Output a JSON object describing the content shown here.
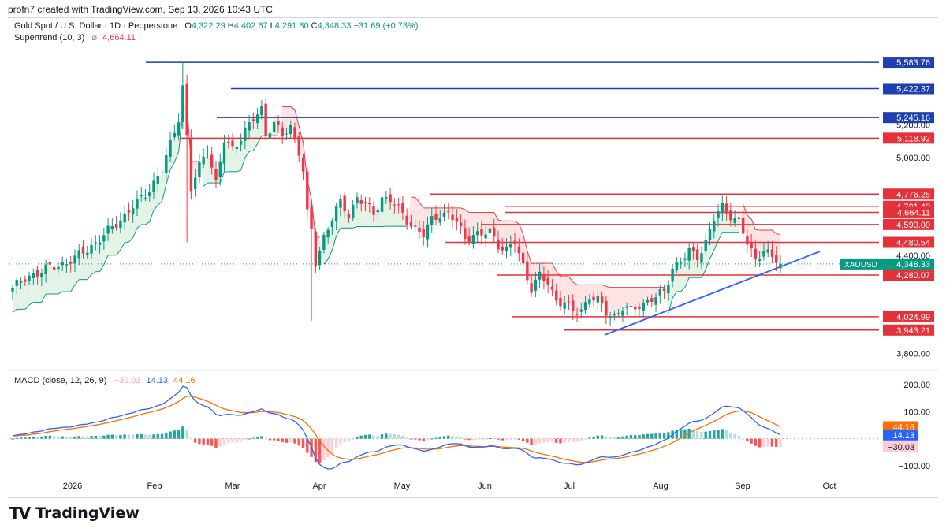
{
  "header": {
    "created_by": "profn7 created with TradingView.com, Sep 13, 2026 10:43 UTC"
  },
  "legend": {
    "symbol": "Gold Spot / U.S. Dollar · 1D · Pepperstone",
    "open_label": "O",
    "open": "4,322.29",
    "high_label": "H",
    "high": "4,402.67",
    "low_label": "L",
    "low": "4,291.80",
    "close_label": "C",
    "close": "4,348.33",
    "change": "+31.69 (+0.73%)",
    "supertrend_label": "Supertrend (10, 3)",
    "supertrend_icon": "eye-off-icon",
    "supertrend_value": "4,664.11",
    "macd_label": "MACD (close, 12, 26, 9)",
    "macd_hist": "−30.03",
    "macd_line": "14.13",
    "macd_signal": "44.16"
  },
  "logo": {
    "mark": "TV",
    "name": "TradingView"
  },
  "colors": {
    "up": "#089981",
    "down": "#f23645",
    "blue_level": "#1e3fb0",
    "red_level": "#e4313a",
    "trend": "#2962ff",
    "macd": "#2962ff",
    "signal": "#ff6d00",
    "st_down_fill": "#fde3e3",
    "st_up_fill": "#e3f3e6"
  },
  "chart_data": [
    {
      "type": "candlestick",
      "symbol": "XAUUSD",
      "ylim": [
        3720,
        5700
      ],
      "y_ticks": [
        "5,200.00",
        "5,000.00",
        "4,400.00",
        "3,800.00"
      ],
      "x_ticks": [
        "2026",
        "Feb",
        "Mar",
        "Apr",
        "May",
        "Jun",
        "Jul",
        "Aug",
        "Sep",
        "Oct"
      ],
      "horizontal_levels": [
        {
          "value": "5,583.76",
          "color": "blue"
        },
        {
          "value": "5,422.37",
          "color": "blue"
        },
        {
          "value": "5,245.16",
          "color": "blue"
        },
        {
          "value": "5,118.92",
          "color": "red"
        },
        {
          "value": "4,776.25",
          "color": "red"
        },
        {
          "value": "4,701.40",
          "color": "red"
        },
        {
          "value": "4,664.11",
          "color": "red"
        },
        {
          "value": "4,590.00",
          "color": "red"
        },
        {
          "value": "4,480.54",
          "color": "red"
        },
        {
          "value": "4,347.32",
          "color": "green"
        },
        {
          "value": "4,280.07",
          "color": "red"
        },
        {
          "value": "4,024.99",
          "color": "red"
        },
        {
          "value": "3,943.21",
          "color": "red"
        }
      ],
      "price_tag": {
        "symbol": "XAUUSD",
        "value": "4,348.33"
      },
      "close_anchors": [
        [
          0,
          4200
        ],
        [
          5,
          4290
        ],
        [
          10,
          4330
        ],
        [
          15,
          4380
        ],
        [
          18,
          4440
        ],
        [
          22,
          4520
        ],
        [
          25,
          4600
        ],
        [
          30,
          4720
        ],
        [
          33,
          4810
        ],
        [
          36,
          4920
        ],
        [
          38,
          5080
        ],
        [
          40,
          5250
        ],
        [
          41,
          5440
        ],
        [
          42,
          5120
        ],
        [
          43,
          4800
        ],
        [
          45,
          4950
        ],
        [
          47,
          5060
        ],
        [
          49,
          4840
        ],
        [
          51,
          5100
        ],
        [
          53,
          5060
        ],
        [
          56,
          5160
        ],
        [
          58,
          5230
        ],
        [
          60,
          5300
        ],
        [
          61,
          5150
        ],
        [
          63,
          5210
        ],
        [
          65,
          5130
        ],
        [
          67,
          5190
        ],
        [
          69,
          5040
        ],
        [
          70,
          4920
        ],
        [
          71,
          4650
        ],
        [
          72,
          4550
        ],
        [
          73,
          4350
        ],
        [
          75,
          4520
        ],
        [
          77,
          4630
        ],
        [
          79,
          4720
        ],
        [
          81,
          4650
        ],
        [
          83,
          4760
        ],
        [
          85,
          4710
        ],
        [
          87,
          4650
        ],
        [
          89,
          4760
        ],
        [
          91,
          4740
        ],
        [
          93,
          4680
        ],
        [
          95,
          4620
        ],
        [
          97,
          4570
        ],
        [
          99,
          4520
        ],
        [
          101,
          4620
        ],
        [
          103,
          4660
        ],
        [
          105,
          4650
        ],
        [
          107,
          4600
        ],
        [
          109,
          4510
        ],
        [
          111,
          4530
        ],
        [
          113,
          4520
        ],
        [
          115,
          4550
        ],
        [
          117,
          4470
        ],
        [
          119,
          4430
        ],
        [
          121,
          4480
        ],
        [
          123,
          4340
        ],
        [
          125,
          4200
        ],
        [
          127,
          4270
        ],
        [
          129,
          4230
        ],
        [
          131,
          4130
        ],
        [
          133,
          4110
        ],
        [
          135,
          4050
        ],
        [
          137,
          4070
        ],
        [
          139,
          4150
        ],
        [
          141,
          4120
        ],
        [
          143,
          4050
        ],
        [
          145,
          4030
        ],
        [
          147,
          4080
        ],
        [
          149,
          4060
        ],
        [
          151,
          4100
        ],
        [
          153,
          4120
        ],
        [
          155,
          4140
        ],
        [
          157,
          4180
        ],
        [
          159,
          4330
        ],
        [
          161,
          4360
        ],
        [
          163,
          4420
        ],
        [
          165,
          4400
        ],
        [
          167,
          4480
        ],
        [
          169,
          4620
        ],
        [
          171,
          4700
        ],
        [
          173,
          4650
        ],
        [
          175,
          4600
        ],
        [
          177,
          4470
        ],
        [
          179,
          4380
        ],
        [
          181,
          4440
        ],
        [
          183,
          4380
        ],
        [
          185,
          4348
        ]
      ]
    },
    {
      "type": "macd",
      "ylim": [
        -135,
        235
      ],
      "y_ticks": [
        "200.00",
        "100.00",
        "−100.00"
      ],
      "current": {
        "histogram": -30.03,
        "macd": 14.13,
        "signal": 44.16
      }
    }
  ]
}
